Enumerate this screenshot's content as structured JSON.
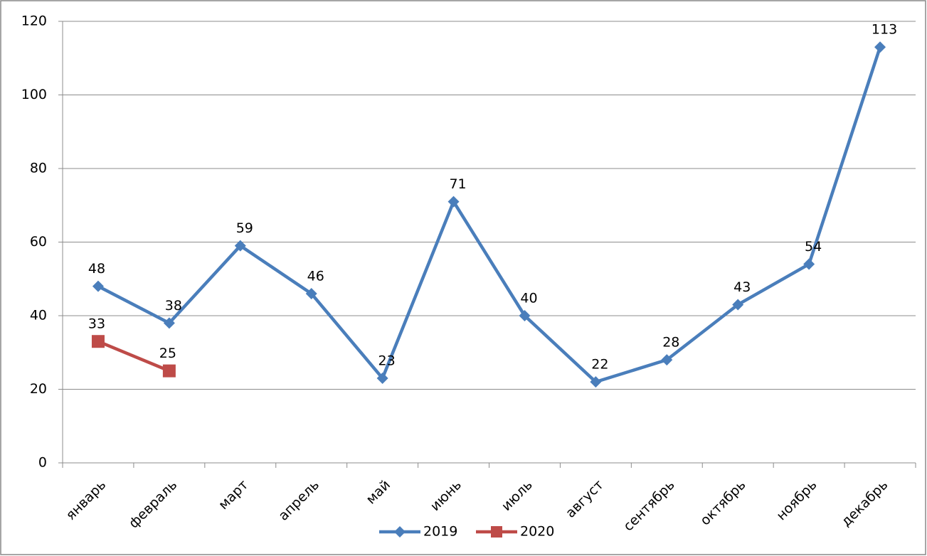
{
  "chart_data": {
    "type": "line",
    "categories": [
      "январь",
      "февраль",
      "март",
      "апрель",
      "май",
      "июнь",
      "июль",
      "август",
      "сентябрь",
      "октябрь",
      "ноябрь",
      "декабрь"
    ],
    "series": [
      {
        "name": "2019",
        "color": "#4a7ebb",
        "marker": "diamond",
        "values": [
          48,
          38,
          59,
          46,
          23,
          71,
          40,
          22,
          28,
          43,
          54,
          113
        ]
      },
      {
        "name": "2020",
        "color": "#be4b48",
        "marker": "square",
        "values": [
          33,
          25,
          null,
          null,
          null,
          null,
          null,
          null,
          null,
          null,
          null,
          null
        ]
      }
    ],
    "ylim": [
      0,
      120
    ],
    "yticks": [
      0,
      20,
      40,
      60,
      80,
      100,
      120
    ],
    "grid": true,
    "legend": "bottom"
  }
}
